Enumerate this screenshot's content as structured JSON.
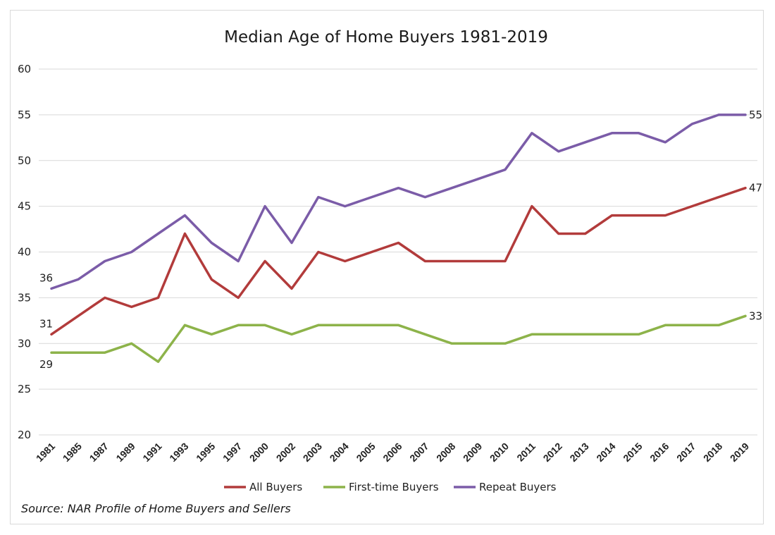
{
  "chart_data": {
    "type": "line",
    "title": "Median Age of Home Buyers 1981-2019",
    "categories": [
      "1981",
      "1985",
      "1987",
      "1989",
      "1991",
      "1993",
      "1995",
      "1997",
      "2000",
      "2002",
      "2003",
      "2004",
      "2005",
      "2006",
      "2007",
      "2008",
      "2009",
      "2010",
      "2011",
      "2012",
      "2013",
      "2014",
      "2015",
      "2016",
      "2017",
      "2018",
      "2019"
    ],
    "ylim": [
      20,
      60
    ],
    "yticks": [
      20,
      25,
      30,
      35,
      40,
      45,
      50,
      55,
      60
    ],
    "grid": true,
    "legend_position": "bottom",
    "series": [
      {
        "name": "All Buyers",
        "color": "#b23b3b",
        "values": [
          31,
          33,
          35,
          34,
          35,
          42,
          37,
          35,
          39,
          36,
          40,
          39,
          40,
          41,
          39,
          39,
          39,
          39,
          45,
          42,
          42,
          44,
          44,
          44,
          45,
          46,
          47
        ]
      },
      {
        "name": "First-time Buyers",
        "color": "#8db34a",
        "values": [
          29,
          29,
          29,
          30,
          28,
          32,
          31,
          32,
          32,
          31,
          32,
          32,
          32,
          32,
          31,
          30,
          30,
          30,
          31,
          31,
          31,
          31,
          31,
          32,
          32,
          32,
          33
        ]
      },
      {
        "name": "Repeat Buyers",
        "color": "#7b5ca8",
        "values": [
          36,
          37,
          39,
          40,
          42,
          44,
          41,
          39,
          45,
          41,
          46,
          45,
          46,
          47,
          46,
          47,
          48,
          49,
          53,
          51,
          52,
          53,
          53,
          52,
          54,
          55,
          55
        ]
      }
    ],
    "data_labels": [
      {
        "series": 0,
        "index": 0,
        "text": "31"
      },
      {
        "series": 1,
        "index": 0,
        "text": "29"
      },
      {
        "series": 2,
        "index": 0,
        "text": "36"
      },
      {
        "series": 0,
        "index": 26,
        "text": "47"
      },
      {
        "series": 1,
        "index": 26,
        "text": "33"
      },
      {
        "series": 2,
        "index": 26,
        "text": "55"
      }
    ],
    "source": "Source: NAR Profile of Home Buyers and Sellers"
  }
}
